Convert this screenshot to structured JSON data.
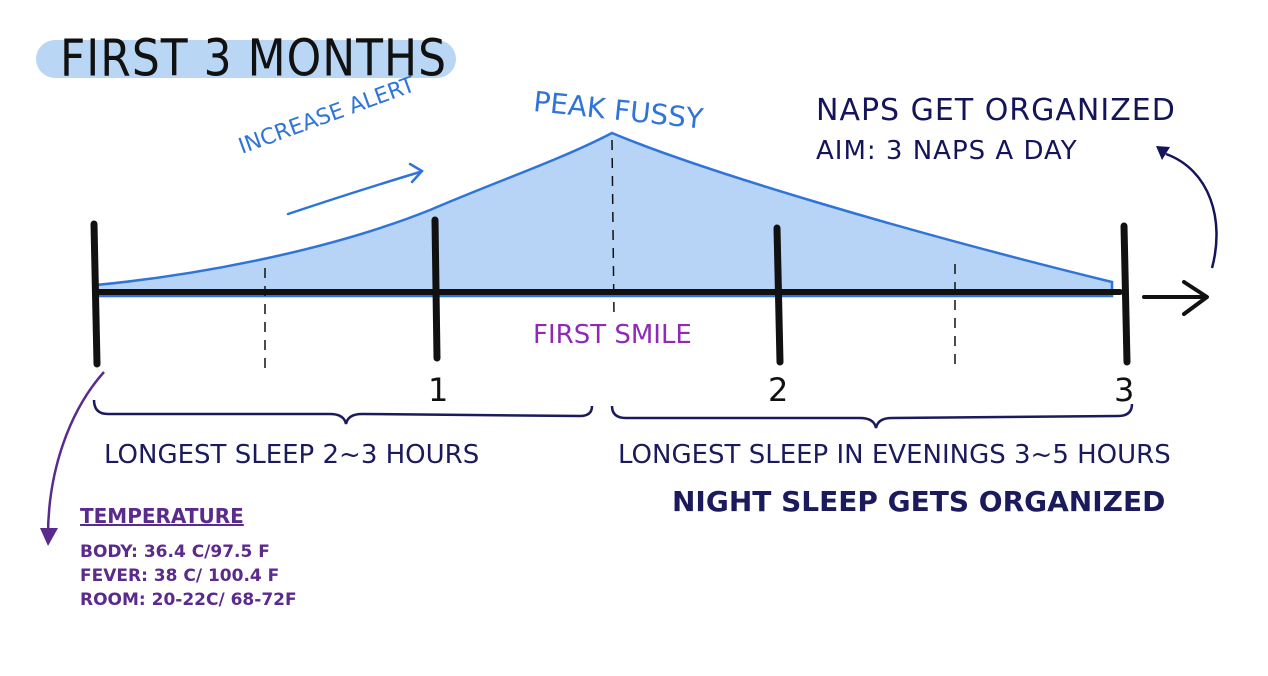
{
  "title": "FIRST 3 MONTHS",
  "peak_label": "PEAK FUSSY",
  "increase_label": "INCREASE ALERT",
  "smile_label": "FIRST SMILE",
  "naps": {
    "line1": "NAPS GET ORGANIZED",
    "line2": "AIM: 3 NAPS A DAY"
  },
  "ticks": [
    "1",
    "2",
    "3"
  ],
  "left_period": {
    "label": "LONGEST SLEEP 2~3 HOURS"
  },
  "right_period": {
    "label1": "LONGEST SLEEP IN EVENINGS 3~5 HOURS",
    "label2": "NIGHT SLEEP GETS ORGANIZED"
  },
  "temperature": {
    "title": "TEMPERATURE",
    "lines": [
      "BODY: 36.4 C/97.5 F",
      "FEVER: 38 C/ 100.4 F",
      "ROOM: 20-22C/ 68-72F"
    ]
  },
  "colors": {
    "highlight": "#b9d6f5",
    "fill": "#b7d4f6",
    "fill_stroke": "#2f74d8",
    "blue_text": "#2f74d8",
    "purple": "#8e2ab6",
    "dark_purple": "#5a2a8c",
    "navy": "#14145a",
    "ink": "#111111"
  }
}
